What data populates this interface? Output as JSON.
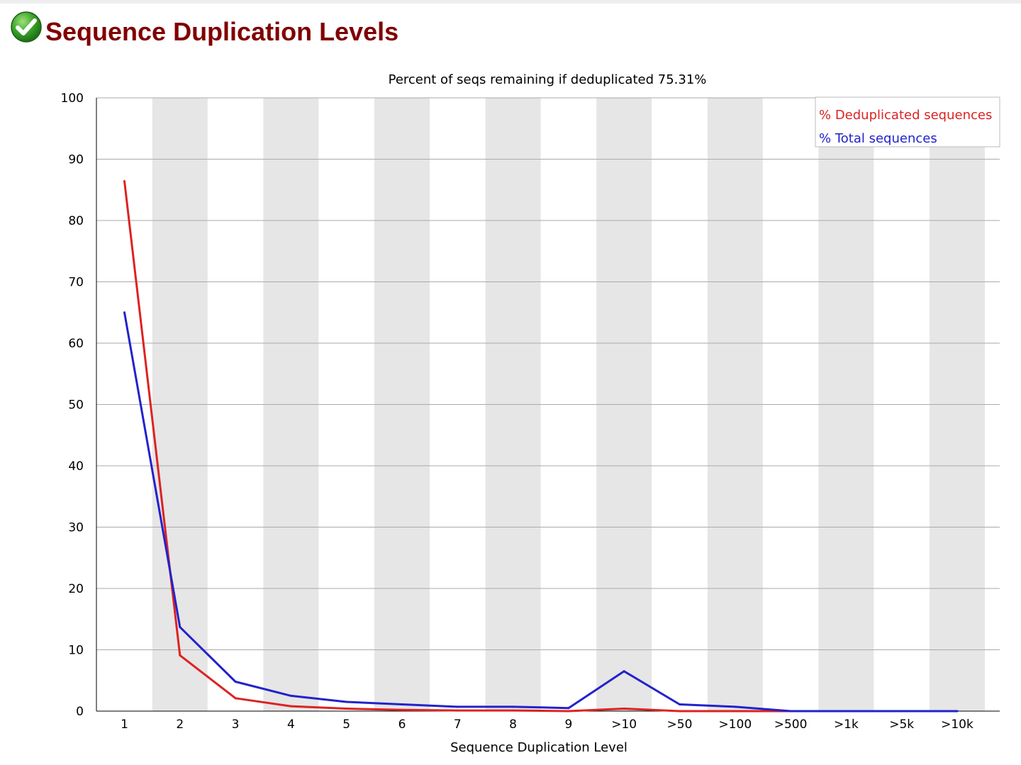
{
  "header": {
    "title": "Sequence Duplication Levels",
    "status_icon": "pass-check-icon"
  },
  "colors": {
    "title": "#800000",
    "deduplicated": "#dd2222",
    "total": "#2222cc",
    "stripe": "#e6e6e6",
    "grid": "#aaaaaa"
  },
  "chart_data": {
    "type": "line",
    "title": "Percent of seqs remaining if deduplicated 75.31%",
    "xlabel": "Sequence Duplication Level",
    "ylabel": "",
    "ylim": [
      0,
      100
    ],
    "yticks": [
      0,
      10,
      20,
      30,
      40,
      50,
      60,
      70,
      80,
      90,
      100
    ],
    "grid": true,
    "legend_position": "top-right",
    "categories": [
      "1",
      "2",
      "3",
      "4",
      "5",
      "6",
      "7",
      "8",
      "9",
      ">10",
      ">50",
      ">100",
      ">500",
      ">1k",
      ">5k",
      ">10k"
    ],
    "series": [
      {
        "name": "% Deduplicated sequences",
        "color": "#dd2222",
        "values": [
          86.4,
          9.1,
          2.1,
          0.8,
          0.4,
          0.2,
          0.1,
          0.1,
          0.0,
          0.4,
          0.0,
          0.0,
          0.0,
          0.0,
          0.0,
          0.0
        ]
      },
      {
        "name": "% Total sequences",
        "color": "#2222cc",
        "values": [
          65.0,
          13.7,
          4.8,
          2.5,
          1.5,
          1.1,
          0.7,
          0.7,
          0.5,
          6.5,
          1.1,
          0.7,
          0.0,
          0.0,
          0.0,
          0.0
        ]
      }
    ]
  }
}
